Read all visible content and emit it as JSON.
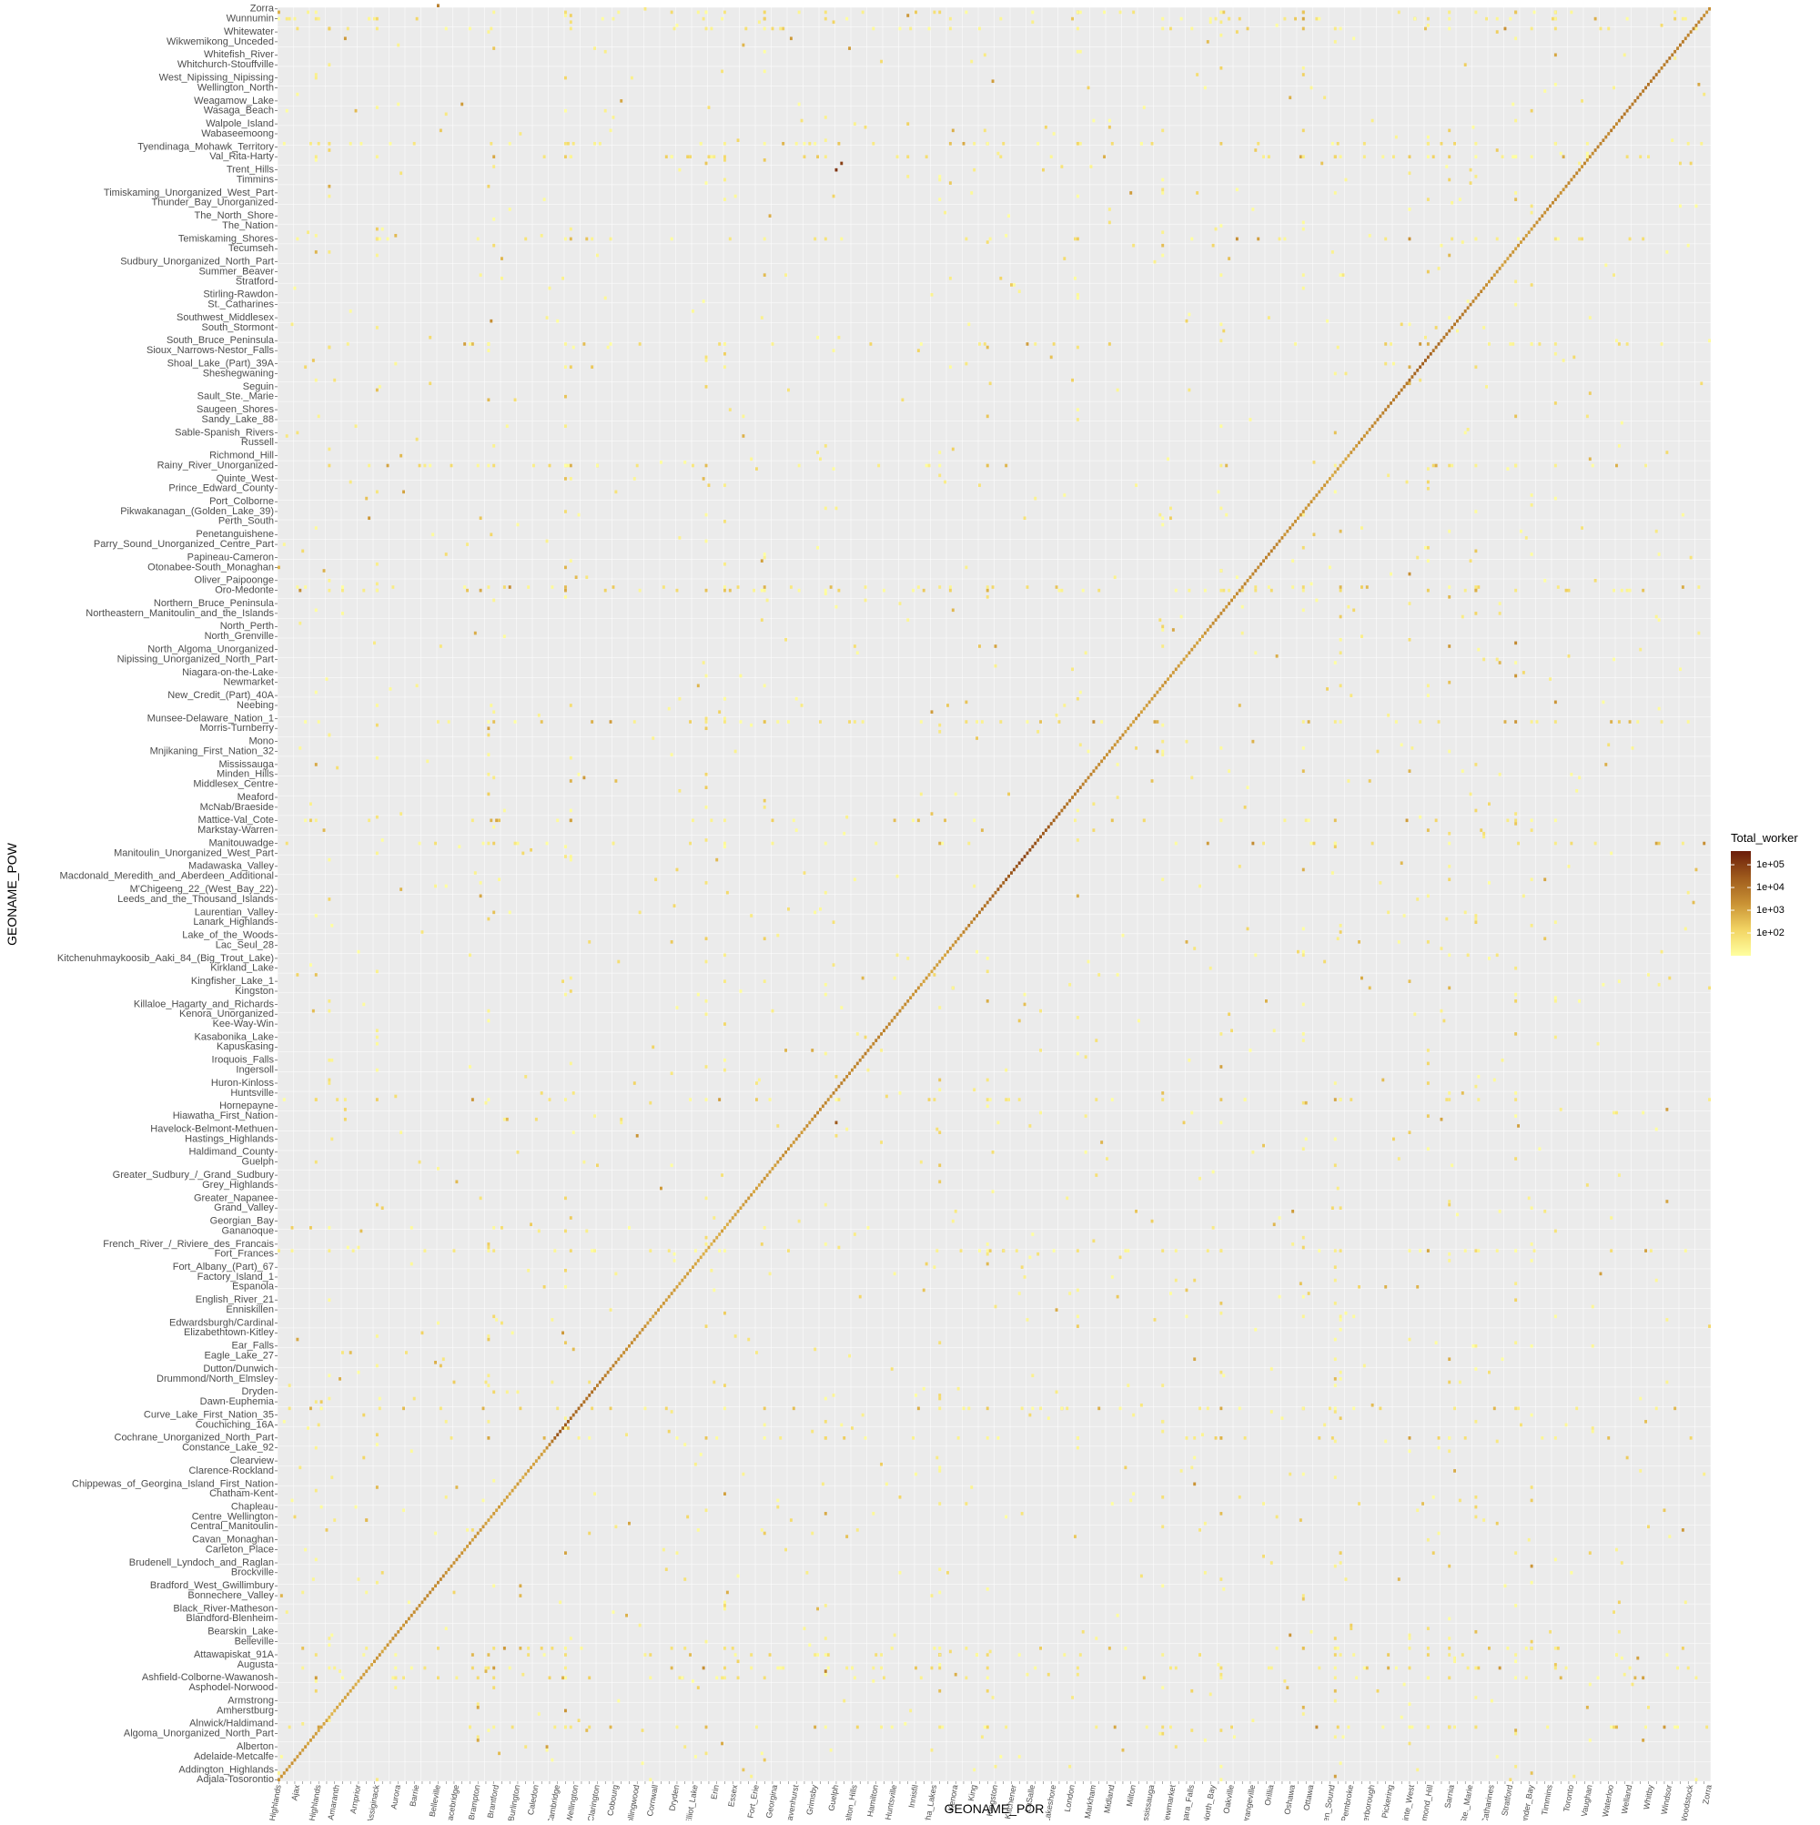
{
  "chart_data": {
    "type": "heatmap",
    "title": "",
    "xlabel": "GEONAME_POR",
    "ylabel": "GEONAME_POW",
    "scale": "log10",
    "legend": {
      "title": "Total_worker",
      "position": "right",
      "labels": [
        "1e+05",
        "1e+04",
        "1e+03",
        "1e+02"
      ],
      "values": [
        100000,
        10000,
        1000,
        100
      ],
      "range": [
        10,
        400000
      ],
      "colors": {
        "low": "#ffffa0",
        "mid1": "#f2d463",
        "mid2": "#c99234",
        "mid3": "#9e5a1c",
        "high": "#6b1d0a"
      }
    },
    "n_categories": 540,
    "background": "#ebebeb",
    "grid": true,
    "y_tick_labels": [
      "Zorra",
      "Wunnumin",
      "Whitewater",
      "Wikwemikong_Unceded",
      "Whitefish_River",
      "Whitchurch-Stouffville",
      "West_Nipissing_Nipissing",
      "Wellington_North",
      "Weagamow_Lake",
      "Wasaga_Beach",
      "Walpole_Island",
      "Wabaseemoong",
      "Tyendinaga_Mohawk_Territory",
      "Val_Rita-Harty",
      "Trent_Hills",
      "Timmins",
      "Timiskaming_Unorganized_West_Part",
      "Thunder_Bay_Unorganized",
      "The_North_Shore",
      "The_Nation",
      "Temiskaming_Shores",
      "Tecumseh",
      "Sudbury_Unorganized_North_Part",
      "Summer_Beaver",
      "Stratford",
      "Stirling-Rawdon",
      "St._Catharines",
      "Southwest_Middlesex",
      "South_Stormont",
      "South_Bruce_Peninsula",
      "Sioux_Narrows-Nestor_Falls",
      "Shoal_Lake_(Part)_39A",
      "Sheshegwaning",
      "Seguin",
      "Sault_Ste._Marie",
      "Saugeen_Shores",
      "Sandy_Lake_88",
      "Sable-Spanish_Rivers",
      "Russell",
      "Richmond_Hill",
      "Rainy_River_Unorganized",
      "Quinte_West",
      "Prince_Edward_County",
      "Port_Colborne",
      "Pikwakanagan_(Golden_Lake_39)",
      "Perth_South",
      "Penetanguishene",
      "Parry_Sound_Unorganized_Centre_Part",
      "Papineau-Cameron",
      "Otonabee-South_Monaghan",
      "Oliver_Paipoonge",
      "Oro-Medonte",
      "Northern_Bruce_Peninsula",
      "Northeastern_Manitoulin_and_the_Islands",
      "North_Perth",
      "North_Grenville",
      "North_Algoma_Unorganized",
      "Nipissing_Unorganized_North_Part",
      "Niagara-on-the-Lake",
      "Newmarket",
      "New_Credit_(Part)_40A",
      "Neebing",
      "Munsee-Delaware_Nation_1",
      "Morris-Turnberry",
      "Mono",
      "Mnjikaning_First_Nation_32",
      "Mississauga",
      "Minden_Hills",
      "Middlesex_Centre",
      "Meaford",
      "McNab/Braeside",
      "Mattice-Val_Cote",
      "Markstay-Warren",
      "Manitouwadge",
      "Manitoulin_Unorganized_West_Part",
      "Madawaska_Valley",
      "Macdonald_Meredith_and_Aberdeen_Additional",
      "M'Chigeeng_22_(West_Bay_22)",
      "Leeds_and_the_Thousand_Islands",
      "Laurentian_Valley",
      "Lanark_Highlands",
      "Lake_of_the_Woods",
      "Lac_Seul_28",
      "Kitchenuhmaykoosib_Aaki_84_(Big_Trout_Lake)",
      "Kirkland_Lake",
      "Kingfisher_Lake_1",
      "Kingston",
      "Killaloe_Hagarty_and_Richards",
      "Kenora_Unorganized",
      "Kee-Way-Win",
      "Kasabonika_Lake",
      "Kapuskasing",
      "Iroquois_Falls",
      "Ingersoll",
      "Huron-Kinloss",
      "Huntsville",
      "Hornepayne",
      "Hiawatha_First_Nation",
      "Havelock-Belmont-Methuen",
      "Hastings_Highlands",
      "Haldimand_County",
      "Guelph",
      "Greater_Sudbury_/_Grand_Sudbury",
      "Grey_Highlands",
      "Greater_Napanee",
      "Grand_Valley",
      "Georgian_Bay",
      "Gananoque",
      "French_River_/_Riviere_des_Francais",
      "Fort_Frances",
      "Fort_Albany_(Part)_67",
      "Factory_Island_1",
      "Espanola",
      "English_River_21",
      "Enniskillen",
      "Edwardsburgh/Cardinal",
      "Elizabethtown-Kitley",
      "Ear_Falls",
      "Eagle_Lake_27",
      "Dutton/Dunwich",
      "Drummond/North_Elmsley",
      "Dryden",
      "Dawn-Euphemia",
      "Curve_Lake_First_Nation_35",
      "Couchiching_16A",
      "Cochrane_Unorganized_North_Part",
      "Constance_Lake_92",
      "Clearview",
      "Clarence-Rockland",
      "Chippewas_of_Georgina_Island_First_Nation",
      "Chatham-Kent",
      "Chapleau",
      "Centre_Wellington",
      "Central_Manitoulin",
      "Cavan_Monaghan",
      "Carleton_Place",
      "Brudenell_Lyndoch_and_Raglan",
      "Brockville",
      "Bradford_West_Gwillimbury",
      "Bonnechere_Valley",
      "Black_River-Matheson",
      "Blandford-Blenheim",
      "Bearskin_Lake",
      "Belleville",
      "Attawapiskat_91A",
      "Augusta",
      "Ashfield-Colborne-Wawanosh",
      "Asphodel-Norwood",
      "Armstrong",
      "Amherstburg",
      "Alnwick/Haldimand",
      "Algoma_Unorganized_North_Part",
      "Alberton",
      "Adelaide-Metcalfe",
      "Addington_Highlands",
      "Adjala-Tosorontio"
    ],
    "x_tick_labels": [
      "Addington_Highlands",
      "Ajax",
      "Algonquin_Highlands",
      "Amaranth",
      "Arnprior",
      "Assiginack",
      "Aurora",
      "Barrie",
      "Belleville",
      "Bracebridge",
      "Brampton",
      "Brantford",
      "Burlington",
      "Caledon",
      "Cambridge",
      "Centre_Wellington",
      "Clarington",
      "Cobourg",
      "Collingwood",
      "Cornwall",
      "Dryden",
      "Elliot_Lake",
      "Erin",
      "Essex",
      "Fort_Erie",
      "Georgina",
      "Gravenhurst",
      "Grimsby",
      "Guelph",
      "Halton_Hills",
      "Hamilton",
      "Huntsville",
      "Innisfil",
      "Kawartha_Lakes",
      "Kenora",
      "King",
      "Kingston",
      "Kitchener",
      "LaSalle",
      "Lakeshore",
      "London",
      "Markham",
      "Midland",
      "Milton",
      "Mississauga",
      "Newmarket",
      "Niagara_Falls",
      "North_Bay",
      "Oakville",
      "Orangeville",
      "Orillia",
      "Oshawa",
      "Ottawa",
      "Owen_Sound",
      "Pembroke",
      "Peterborough",
      "Pickering",
      "Quinte_West",
      "Richmond_Hill",
      "Sarnia",
      "Sault_Ste._Marie",
      "St._Catharines",
      "Stratford",
      "Thunder_Bay",
      "Timmins",
      "Toronto",
      "Vaughan",
      "Waterloo",
      "Welland",
      "Whitby",
      "Windsor",
      "Woodstock",
      "Zorra"
    ],
    "diagonal": [
      {
        "i": 0,
        "value": 2000
      },
      {
        "i": 20,
        "value": 800
      },
      {
        "i": 40,
        "value": 1500
      },
      {
        "i": 60,
        "value": 3000
      },
      {
        "i": 80,
        "value": 1200
      },
      {
        "i": 100,
        "value": 900
      },
      {
        "i": 105,
        "value": 30000
      },
      {
        "i": 130,
        "value": 2500
      },
      {
        "i": 160,
        "value": 700
      },
      {
        "i": 190,
        "value": 1800
      },
      {
        "i": 220,
        "value": 5000
      },
      {
        "i": 250,
        "value": 1100
      },
      {
        "i": 280,
        "value": 60000
      },
      {
        "i": 310,
        "value": 2200
      },
      {
        "i": 340,
        "value": 1300
      },
      {
        "i": 370,
        "value": 4000
      },
      {
        "i": 400,
        "value": 900
      },
      {
        "i": 430,
        "value": 20000
      },
      {
        "i": 460,
        "value": 1500
      },
      {
        "i": 490,
        "value": 3000
      },
      {
        "i": 520,
        "value": 8000
      },
      {
        "i": 539,
        "value": 2500
      }
    ],
    "prominent_cells": [
      {
        "xi": 210,
        "yi": 490,
        "value": 150000
      },
      {
        "xi": 212,
        "yi": 492,
        "value": 90000
      },
      {
        "xi": 210,
        "yi": 200,
        "value": 30000
      },
      {
        "xi": 60,
        "yi": 540,
        "value": 5000
      }
    ]
  }
}
